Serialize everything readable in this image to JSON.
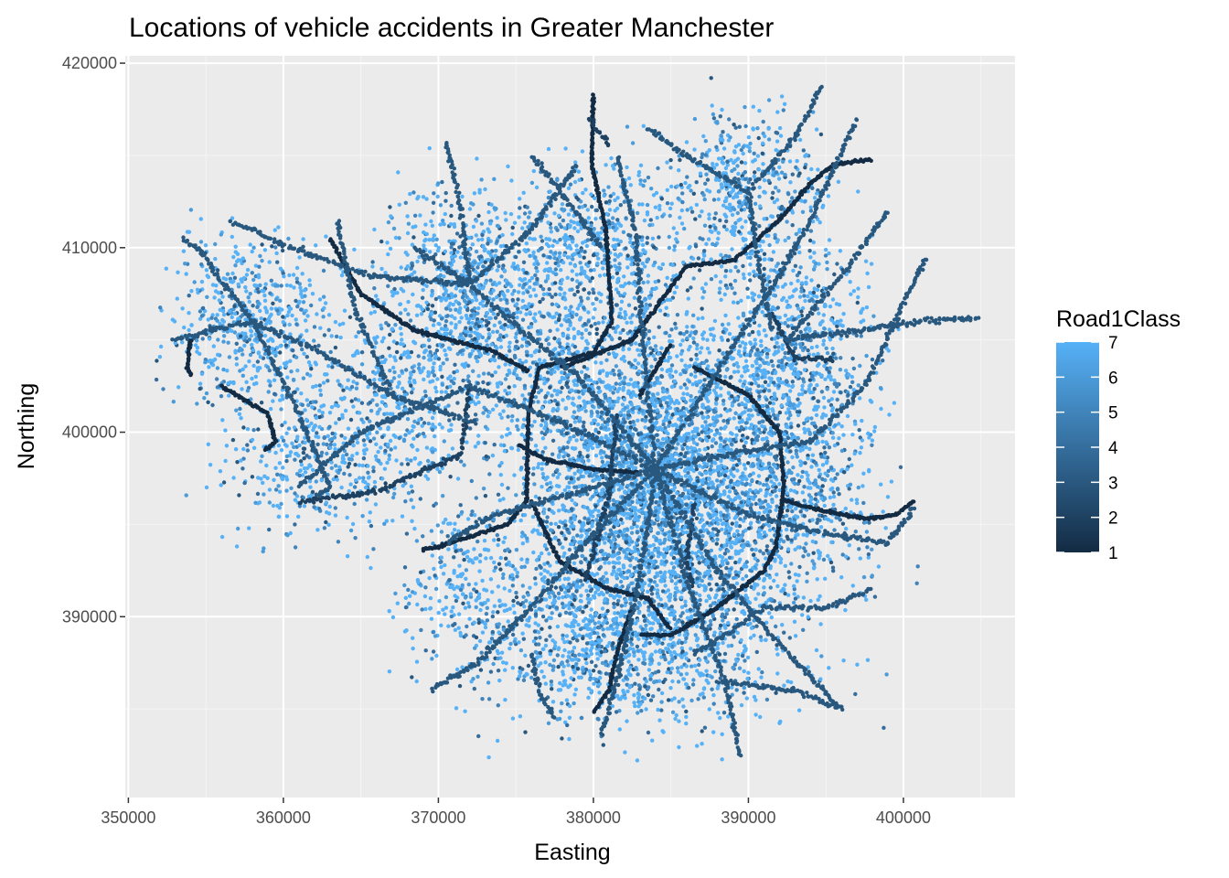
{
  "chart_data": {
    "type": "scatter",
    "title": "Locations of vehicle accidents in Greater Manchester",
    "xlabel": "Easting",
    "ylabel": "Northing",
    "xlim": [
      349800,
      407200
    ],
    "ylim": [
      380200,
      420400
    ],
    "x_ticks": [
      350000,
      360000,
      370000,
      380000,
      390000,
      400000
    ],
    "y_ticks": [
      390000,
      400000,
      410000,
      420000
    ],
    "x_tick_labels": [
      "350000",
      "360000",
      "370000",
      "380000",
      "390000",
      "400000"
    ],
    "y_tick_labels": [
      "390000",
      "400000",
      "410000",
      "420000"
    ],
    "grid": true,
    "legend": {
      "title": "Road1Class",
      "placement": "right",
      "values": [
        1,
        2,
        3,
        4,
        5,
        6,
        7
      ],
      "labels": [
        "1",
        "2",
        "3",
        "4",
        "5",
        "6",
        "7"
      ],
      "color_low": "#132b43",
      "color_high": "#56b1f7"
    },
    "colors": {
      "panel_background": "#ebebeb",
      "grid_major": "#ffffff",
      "grid_minor": "#f5f5f5"
    },
    "clusters": [
      {
        "x": 384000,
        "y": 398000,
        "spread_x": 4200,
        "spread_y": 4200,
        "n": 2600
      },
      {
        "x": 386000,
        "y": 395000,
        "spread_x": 5200,
        "spread_y": 4200,
        "n": 1200
      },
      {
        "x": 372000,
        "y": 408000,
        "spread_x": 2600,
        "spread_y": 2600,
        "n": 700
      },
      {
        "x": 358000,
        "y": 406000,
        "spread_x": 2600,
        "spread_y": 2200,
        "n": 550
      },
      {
        "x": 390000,
        "y": 413000,
        "spread_x": 2600,
        "spread_y": 2200,
        "n": 500
      },
      {
        "x": 392500,
        "y": 405000,
        "spread_x": 2600,
        "spread_y": 2600,
        "n": 650
      },
      {
        "x": 380500,
        "y": 410000,
        "spread_x": 2800,
        "spread_y": 2200,
        "n": 550
      },
      {
        "x": 367000,
        "y": 402000,
        "spread_x": 3200,
        "spread_y": 2600,
        "n": 500
      },
      {
        "x": 382000,
        "y": 389000,
        "spread_x": 5000,
        "spread_y": 2600,
        "n": 1100
      },
      {
        "x": 393000,
        "y": 398000,
        "spread_x": 2600,
        "spread_y": 3200,
        "n": 550
      },
      {
        "x": 377000,
        "y": 404000,
        "spread_x": 3000,
        "spread_y": 2600,
        "n": 450
      },
      {
        "x": 362000,
        "y": 398500,
        "spread_x": 3000,
        "spread_y": 2200,
        "n": 350
      },
      {
        "x": 371500,
        "y": 392000,
        "spread_x": 2000,
        "spread_y": 2200,
        "n": 250
      }
    ],
    "roads": [
      {
        "class": 1,
        "path": [
          [
            380000,
            418300
          ],
          [
            379900,
            414500
          ],
          [
            380800,
            411000
          ],
          [
            381200,
            406000
          ],
          [
            380000,
            404300
          ],
          [
            376500,
            403500
          ],
          [
            375800,
            401000
          ],
          [
            375700,
            396300
          ],
          [
            374500,
            395000
          ],
          [
            370000,
            393800
          ],
          [
            369000,
            393600
          ]
        ]
      },
      {
        "class": 1,
        "path": [
          [
            375800,
            403300
          ],
          [
            373500,
            404400
          ],
          [
            368500,
            405500
          ],
          [
            365000,
            407500
          ],
          [
            363000,
            410500
          ]
        ]
      },
      {
        "class": 1,
        "path": [
          [
            375200,
            399300
          ],
          [
            377000,
            398500
          ],
          [
            380000,
            398000
          ],
          [
            383000,
            397800
          ]
        ]
      },
      {
        "class": 1,
        "path": [
          [
            378000,
            403500
          ],
          [
            382500,
            405000
          ],
          [
            386000,
            409000
          ],
          [
            389000,
            409300
          ],
          [
            392000,
            411500
          ],
          [
            394000,
            413500
          ],
          [
            395500,
            414500
          ],
          [
            398000,
            414800
          ]
        ]
      },
      {
        "class": 1,
        "path": [
          [
            386500,
            403500
          ],
          [
            390000,
            402000
          ],
          [
            392000,
            400000
          ],
          [
            392300,
            397000
          ],
          [
            391800,
            393800
          ],
          [
            391000,
            392500
          ],
          [
            388000,
            390500
          ],
          [
            385000,
            389000
          ],
          [
            383000,
            389000
          ]
        ]
      },
      {
        "class": 1,
        "path": [
          [
            376000,
            396300
          ],
          [
            377800,
            393000
          ],
          [
            381000,
            391500
          ],
          [
            383500,
            391000
          ],
          [
            385000,
            389300
          ]
        ]
      },
      {
        "class": 1,
        "path": [
          [
            382500,
            390500
          ],
          [
            381500,
            388000
          ],
          [
            381000,
            386000
          ],
          [
            380000,
            384800
          ]
        ]
      },
      {
        "class": 1,
        "path": [
          [
            392300,
            396300
          ],
          [
            394500,
            395800
          ],
          [
            397500,
            395300
          ],
          [
            399500,
            395500
          ],
          [
            400700,
            396300
          ]
        ]
      },
      {
        "class": 1,
        "path": [
          [
            354000,
            405000
          ],
          [
            353800,
            403500
          ],
          [
            354100,
            403000
          ]
        ]
      },
      {
        "class": 1,
        "path": [
          [
            356000,
            402500
          ],
          [
            359000,
            401000
          ],
          [
            359500,
            399500
          ],
          [
            358800,
            399000
          ]
        ]
      },
      {
        "class": 1,
        "path": [
          [
            383000,
            402000
          ],
          [
            385000,
            404800
          ]
        ]
      },
      {
        "class": 2,
        "path": [
          [
            379800,
            417000
          ],
          [
            381000,
            415500
          ]
        ]
      },
      {
        "class": 2,
        "path": [
          [
            372000,
            402500
          ],
          [
            371500,
            398800
          ],
          [
            366000,
            396800
          ],
          [
            361000,
            396200
          ]
        ]
      },
      {
        "class": 2,
        "path": [
          [
            391500,
            406500
          ],
          [
            393000,
            404000
          ],
          [
            395500,
            404000
          ]
        ]
      },
      {
        "class": 2,
        "path": [
          [
            386500,
            396200
          ],
          [
            386000,
            393000
          ],
          [
            386500,
            391500
          ]
        ]
      },
      {
        "class": 2,
        "path": [
          [
            381500,
            401000
          ],
          [
            381000,
            396500
          ],
          [
            379500,
            392000
          ]
        ]
      },
      {
        "class": 3,
        "path": [
          [
            384000,
            398000
          ],
          [
            383000,
            406500
          ],
          [
            382800,
            410500
          ],
          [
            381500,
            415000
          ]
        ]
      },
      {
        "class": 3,
        "path": [
          [
            384000,
            398000
          ],
          [
            388500,
            404000
          ],
          [
            392000,
            408500
          ],
          [
            394000,
            411500
          ],
          [
            397000,
            417000
          ]
        ]
      },
      {
        "class": 3,
        "path": [
          [
            384000,
            398000
          ],
          [
            390000,
            399000
          ],
          [
            394000,
            399500
          ],
          [
            397500,
            402500
          ],
          [
            400000,
            407000
          ],
          [
            401500,
            409500
          ]
        ]
      },
      {
        "class": 3,
        "path": [
          [
            384000,
            398000
          ],
          [
            390000,
            395500
          ],
          [
            395000,
            394500
          ],
          [
            399000,
            394000
          ],
          [
            400800,
            396000
          ]
        ]
      },
      {
        "class": 3,
        "path": [
          [
            384000,
            398000
          ],
          [
            388000,
            392500
          ],
          [
            392000,
            388500
          ],
          [
            396000,
            385000
          ]
        ]
      },
      {
        "class": 3,
        "path": [
          [
            384000,
            398000
          ],
          [
            386000,
            392000
          ],
          [
            388500,
            386500
          ],
          [
            389500,
            382400
          ]
        ]
      },
      {
        "class": 3,
        "path": [
          [
            384000,
            398000
          ],
          [
            383000,
            392000
          ],
          [
            381500,
            386500
          ],
          [
            380500,
            383500
          ]
        ]
      },
      {
        "class": 3,
        "path": [
          [
            384000,
            398000
          ],
          [
            380000,
            394500
          ],
          [
            376500,
            391000
          ],
          [
            372500,
            387500
          ],
          [
            369500,
            386000
          ]
        ]
      },
      {
        "class": 3,
        "path": [
          [
            384000,
            398000
          ],
          [
            378000,
            396500
          ],
          [
            373500,
            395500
          ],
          [
            370500,
            394000
          ]
        ]
      },
      {
        "class": 3,
        "path": [
          [
            384000,
            398000
          ],
          [
            378000,
            400500
          ],
          [
            372000,
            402500
          ],
          [
            365000,
            400000
          ],
          [
            361000,
            397000
          ]
        ]
      },
      {
        "class": 3,
        "path": [
          [
            384000,
            398000
          ],
          [
            379000,
            403000
          ],
          [
            374000,
            406500
          ],
          [
            372000,
            408000
          ],
          [
            368500,
            410000
          ]
        ]
      },
      {
        "class": 3,
        "path": [
          [
            372000,
            408000
          ],
          [
            371500,
            412000
          ],
          [
            370500,
            415800
          ]
        ]
      },
      {
        "class": 3,
        "path": [
          [
            372000,
            408000
          ],
          [
            376000,
            411000
          ],
          [
            379000,
            414500
          ]
        ]
      },
      {
        "class": 3,
        "path": [
          [
            372000,
            408000
          ],
          [
            365500,
            408500
          ],
          [
            360500,
            410000
          ],
          [
            356500,
            411500
          ]
        ]
      },
      {
        "class": 3,
        "path": [
          [
            358000,
            406000
          ],
          [
            354500,
            410000
          ],
          [
            353500,
            410500
          ]
        ]
      },
      {
        "class": 3,
        "path": [
          [
            358000,
            406000
          ],
          [
            352800,
            405000
          ]
        ]
      },
      {
        "class": 3,
        "path": [
          [
            358000,
            406000
          ],
          [
            361000,
            401000
          ],
          [
            363000,
            397000
          ],
          [
            362000,
            396500
          ]
        ]
      },
      {
        "class": 3,
        "path": [
          [
            358000,
            406000
          ],
          [
            362000,
            404500
          ],
          [
            367000,
            402000
          ],
          [
            372500,
            400500
          ]
        ]
      },
      {
        "class": 3,
        "path": [
          [
            390000,
            413000
          ],
          [
            386000,
            415000
          ],
          [
            383500,
            416500
          ]
        ]
      },
      {
        "class": 3,
        "path": [
          [
            390000,
            413000
          ],
          [
            393000,
            416000
          ],
          [
            394800,
            418800
          ]
        ]
      },
      {
        "class": 3,
        "path": [
          [
            390000,
            413000
          ],
          [
            390500,
            410000
          ],
          [
            391500,
            405500
          ]
        ]
      },
      {
        "class": 3,
        "path": [
          [
            392500,
            405000
          ],
          [
            397000,
            405500
          ],
          [
            401000,
            406000
          ],
          [
            404800,
            406200
          ]
        ]
      },
      {
        "class": 3,
        "path": [
          [
            392500,
            405000
          ],
          [
            396500,
            409000
          ],
          [
            399000,
            412000
          ]
        ]
      },
      {
        "class": 3,
        "path": [
          [
            380500,
            410000
          ],
          [
            377500,
            413500
          ],
          [
            376000,
            415000
          ]
        ]
      },
      {
        "class": 3,
        "path": [
          [
            367000,
            402000
          ],
          [
            364500,
            407000
          ],
          [
            363500,
            411500
          ]
        ]
      },
      {
        "class": 3,
        "path": [
          [
            388000,
            386500
          ],
          [
            393000,
            386000
          ],
          [
            396000,
            385000
          ]
        ]
      },
      {
        "class": 3,
        "path": [
          [
            376000,
            388000
          ],
          [
            376500,
            386000
          ],
          [
            377500,
            384500
          ]
        ]
      },
      {
        "class": 3,
        "path": [
          [
            386500,
            388000
          ],
          [
            388500,
            389000
          ],
          [
            391000,
            390500
          ],
          [
            395000,
            390500
          ],
          [
            398000,
            391500
          ]
        ]
      }
    ]
  }
}
